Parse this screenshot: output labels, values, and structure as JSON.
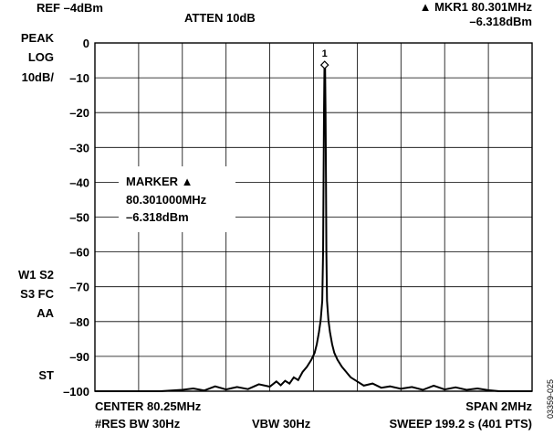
{
  "header": {
    "ref": "REF –4dBm",
    "atten": "ATTEN 10dB",
    "marker_readout_line1": "▲ MKR1 80.301MHz",
    "marker_readout_line2": "–6.318dBm"
  },
  "side_left": {
    "peak": "PEAK",
    "log": "LOG",
    "scale": "10dB/",
    "w1s2": "W1 S2",
    "s3fc": "S3 FC",
    "aa": "AA",
    "st": "ST"
  },
  "marker_box": {
    "line1": "MARKER ▲",
    "line2": "80.301000MHz",
    "line3": "–6.318dBm"
  },
  "footer": {
    "center": "CENTER 80.25MHz",
    "res_bw": "#RES BW 30Hz",
    "vbw": "VBW 30Hz",
    "span": "SPAN 2MHz",
    "sweep": "SWEEP 199.2 s (401 PTS)"
  },
  "figure_id": "03359-025",
  "chart_data": {
    "type": "line",
    "title": "",
    "xlabel": "",
    "ylabel": "",
    "x_unit": "MHz",
    "y_unit": "dBm",
    "xlim": [
      79.25,
      81.25
    ],
    "ylim": [
      -100,
      0
    ],
    "y_ticks": [
      0,
      -10,
      -20,
      -30,
      -40,
      -50,
      -60,
      -70,
      -80,
      -90,
      -100
    ],
    "y_tick_labels": [
      "0",
      "–10",
      "–20",
      "–30",
      "–40",
      "–50",
      "–60",
      "–70",
      "–80",
      "–90",
      "–100"
    ],
    "x_divisions": 10,
    "grid": true,
    "marker": {
      "label": "1",
      "x": 80.301,
      "y": -6.318
    },
    "series": [
      {
        "values": [
          [
            79.25,
            -100
          ],
          [
            79.4,
            -100
          ],
          [
            79.55,
            -100
          ],
          [
            79.65,
            -99.6
          ],
          [
            79.7,
            -99.2
          ],
          [
            79.75,
            -99.8
          ],
          [
            79.8,
            -98.6
          ],
          [
            79.85,
            -99.5
          ],
          [
            79.9,
            -98.8
          ],
          [
            79.95,
            -99.4
          ],
          [
            80.0,
            -98.0
          ],
          [
            80.05,
            -98.7
          ],
          [
            80.08,
            -97.2
          ],
          [
            80.1,
            -98.3
          ],
          [
            80.12,
            -97.0
          ],
          [
            80.14,
            -97.8
          ],
          [
            80.16,
            -96.0
          ],
          [
            80.18,
            -96.8
          ],
          [
            80.2,
            -94.5
          ],
          [
            80.22,
            -93.0
          ],
          [
            80.24,
            -91.0
          ],
          [
            80.255,
            -89.0
          ],
          [
            80.265,
            -86.5
          ],
          [
            80.275,
            -83.0
          ],
          [
            80.283,
            -79.5
          ],
          [
            80.29,
            -74.0
          ],
          [
            80.294,
            -60.0
          ],
          [
            80.296,
            -40.0
          ],
          [
            80.298,
            -20.0
          ],
          [
            80.3,
            -7.0
          ],
          [
            80.301,
            -6.318
          ],
          [
            80.303,
            -7.0
          ],
          [
            80.305,
            -20.0
          ],
          [
            80.307,
            -40.0
          ],
          [
            80.309,
            -60.0
          ],
          [
            80.312,
            -74.0
          ],
          [
            80.318,
            -79.5
          ],
          [
            80.325,
            -83.0
          ],
          [
            80.335,
            -86.5
          ],
          [
            80.345,
            -89.0
          ],
          [
            80.36,
            -91.0
          ],
          [
            80.38,
            -93.0
          ],
          [
            80.4,
            -94.5
          ],
          [
            80.42,
            -96.0
          ],
          [
            80.45,
            -97.2
          ],
          [
            80.48,
            -98.4
          ],
          [
            80.52,
            -97.8
          ],
          [
            80.56,
            -99.0
          ],
          [
            80.6,
            -98.6
          ],
          [
            80.65,
            -99.3
          ],
          [
            80.7,
            -98.8
          ],
          [
            80.75,
            -99.6
          ],
          [
            80.8,
            -98.4
          ],
          [
            80.85,
            -99.5
          ],
          [
            80.9,
            -98.9
          ],
          [
            80.95,
            -99.6
          ],
          [
            81.0,
            -99.2
          ],
          [
            81.05,
            -99.7
          ],
          [
            81.1,
            -100
          ],
          [
            81.25,
            -100
          ]
        ]
      }
    ]
  }
}
